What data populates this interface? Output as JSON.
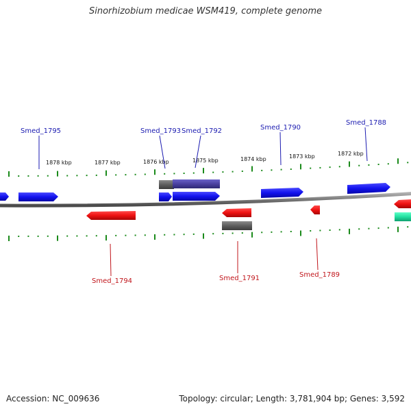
{
  "title": "Sinorhizobium medicae WSM419, complete genome",
  "footer": {
    "accession": "Accession: NC_009636",
    "summary": "Topology: circular; Length: 3,781,904 bp; Genes: 3,592"
  },
  "scale": {
    "kbp_labels": [
      "1878 kbp",
      "1877 kbp",
      "1876 kbp",
      "1875 kbp",
      "1874 kbp",
      "1873 kbp",
      "1872 kbp"
    ]
  },
  "genes": {
    "forward": [
      "Smed_1795",
      "Smed_1793",
      "Smed_1792",
      "Smed_1790",
      "Smed_1788"
    ],
    "reverse": [
      "Smed_1794",
      "Smed_1791",
      "Smed_1789"
    ]
  },
  "colors": {
    "forward_gene": "#1010e8",
    "reverse_gene": "#e81010",
    "forward_label": "#1a1ab0",
    "reverse_label": "#c0141a",
    "backbone": "#7a7a7a",
    "tick": "#1a8a1a",
    "gray_feature": "#5e5e5e",
    "purple_feature": "#4a40a0",
    "green_feature": "#20e0a0"
  }
}
